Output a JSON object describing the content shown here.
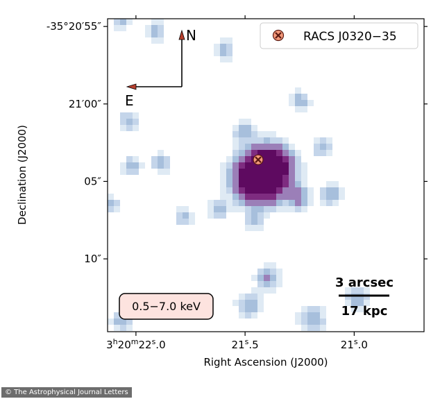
{
  "chart_data": {
    "type": "heatmap",
    "xlabel": "Right Ascension (J2000)",
    "ylabel": "Declination (J2000)",
    "x_ticks": [
      {
        "h": "3",
        "m": "20",
        "s": "22.0",
        "sec": 22.0
      },
      {
        "s": "21.5",
        "sec": 21.5
      },
      {
        "s": "21.0",
        "sec": 21.0
      }
    ],
    "x_range_sec": [
      22.13,
      20.68
    ],
    "y_ticks": [
      {
        "label": "-35°20′55″",
        "arcsec": 55
      },
      {
        "label": "21′00″",
        "arcsec": 60
      },
      {
        "label": "05″",
        "arcsec": 65
      },
      {
        "label": "10″",
        "arcsec": 70
      }
    ],
    "y_range_arcsec": [
      54.5,
      74.7
    ],
    "legend": {
      "label": "RACS J0320−35",
      "position": "top-right",
      "marker": "x-in-circle",
      "color": "#f4997a"
    },
    "source_position": {
      "ra_sec": 21.44,
      "dec_arcsec": 63.6
    },
    "energy_band": "0.5−7.0 keV",
    "scale_bar": {
      "top_label": "3 arcsec",
      "bottom_label": "17 kpc"
    },
    "compass": {
      "north": "N",
      "east": "E"
    },
    "colormap": [
      "#dfeaf4",
      "#c4d5ea",
      "#a7bfdc",
      "#9b7fb8",
      "#7e2c80",
      "#5e0a60"
    ]
  },
  "credit": "© The Astrophysical Journal Letters"
}
